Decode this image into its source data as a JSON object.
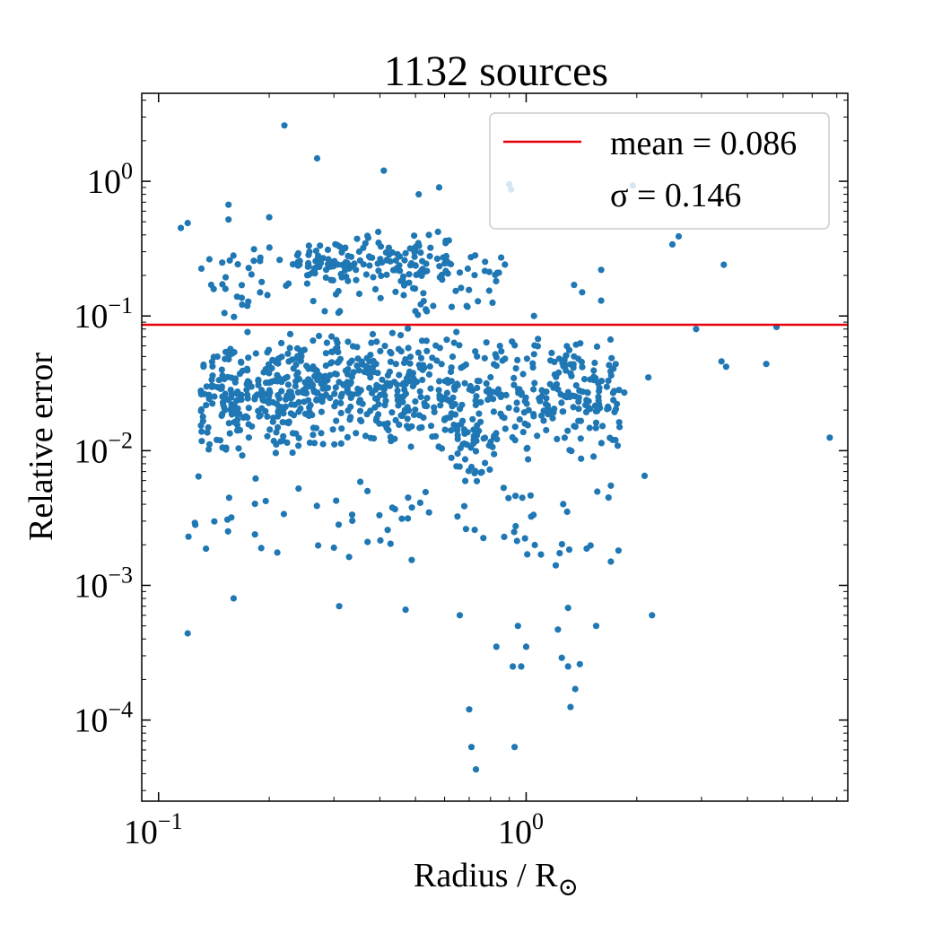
{
  "chart_data": {
    "type": "scatter",
    "title": "1132 sources",
    "xlabel": "Radius / R",
    "xlabel_subscript": "⊙",
    "ylabel": "Relative error",
    "x_scale": "log",
    "y_scale": "log",
    "xlim": [
      0.09,
      7.5
    ],
    "ylim": [
      2.5e-05,
      4.5
    ],
    "x_ticks": [
      {
        "value": 0.1,
        "base": "10",
        "exp": "−1"
      },
      {
        "value": 1,
        "base": "10",
        "exp": "0"
      }
    ],
    "y_ticks": [
      {
        "value": 1,
        "base": "10",
        "exp": "0"
      },
      {
        "value": 0.1,
        "base": "10",
        "exp": "−1"
      },
      {
        "value": 0.01,
        "base": "10",
        "exp": "−2"
      },
      {
        "value": 0.001,
        "base": "10",
        "exp": "−3"
      },
      {
        "value": 0.0001,
        "base": "10",
        "exp": "−4"
      }
    ],
    "point_color": "#1f77b4",
    "mean_line": {
      "value": 0.086,
      "color": "#e8000b"
    },
    "legend": {
      "placement": "top-right",
      "mean_label": "mean = 0.086",
      "sigma_label": "σ = 0.146"
    },
    "grid": false,
    "outlier_points": [
      [
        0.22,
        2.6
      ],
      [
        0.27,
        1.48
      ],
      [
        0.41,
        1.2
      ],
      [
        0.115,
        0.45
      ],
      [
        0.12,
        0.49
      ],
      [
        0.155,
        0.67
      ],
      [
        0.155,
        0.52
      ],
      [
        0.2,
        0.54
      ],
      [
        0.51,
        0.8
      ],
      [
        0.58,
        0.9
      ],
      [
        0.9,
        0.95
      ],
      [
        0.91,
        0.87
      ],
      [
        1.95,
        0.93
      ],
      [
        2.5,
        0.34
      ],
      [
        2.6,
        0.39
      ],
      [
        3.45,
        0.24
      ],
      [
        3.4,
        0.046
      ],
      [
        3.5,
        0.042
      ],
      [
        4.5,
        0.044
      ],
      [
        4.8,
        0.083
      ],
      [
        2.9,
        0.08
      ],
      [
        6.7,
        0.0125
      ],
      [
        0.12,
        0.00044
      ],
      [
        0.16,
        0.0008
      ],
      [
        0.31,
        0.0007
      ],
      [
        0.47,
        0.00066
      ],
      [
        0.66,
        0.0006
      ],
      [
        0.7,
        0.00012
      ],
      [
        0.71,
        6.3e-05
      ],
      [
        0.73,
        4.3e-05
      ],
      [
        0.93,
        6.3e-05
      ],
      [
        0.83,
        0.00035
      ],
      [
        0.92,
        0.00025
      ],
      [
        0.97,
        0.00025
      ],
      [
        0.95,
        0.0005
      ],
      [
        1.0,
        0.00035
      ],
      [
        1.25,
        0.00029
      ],
      [
        1.3,
        0.00025
      ],
      [
        1.32,
        0.000125
      ],
      [
        1.36,
        0.00017
      ],
      [
        1.4,
        0.00026
      ],
      [
        1.22,
        0.00047
      ],
      [
        1.3,
        0.00068
      ],
      [
        1.55,
        0.0005
      ],
      [
        2.2,
        0.0006
      ],
      [
        2.1,
        0.0065
      ],
      [
        2.15,
        0.035
      ],
      [
        1.7,
        0.0015
      ],
      [
        1.7,
        0.0055
      ],
      [
        1.75,
        0.012
      ],
      [
        1.85,
        0.027
      ],
      [
        1.6,
        0.22
      ],
      [
        1.6,
        0.13
      ],
      [
        1.35,
        0.17
      ],
      [
        1.42,
        0.15
      ],
      [
        1.05,
        0.1
      ],
      [
        0.66,
        0.21
      ]
    ],
    "cloud_regions": [
      {
        "x_range": [
          0.13,
          0.24
        ],
        "y_range": [
          0.008,
          0.08
        ],
        "count": 240
      },
      {
        "x_range": [
          0.24,
          0.55
        ],
        "y_range": [
          0.01,
          0.09
        ],
        "count": 290
      },
      {
        "x_range": [
          0.55,
          1.8
        ],
        "y_range": [
          0.008,
          0.08
        ],
        "count": 290
      },
      {
        "x_range": [
          0.23,
          0.34
        ],
        "y_range": [
          0.18,
          0.35
        ],
        "count": 55
      },
      {
        "x_range": [
          0.34,
          0.62
        ],
        "y_range": [
          0.15,
          0.45
        ],
        "count": 80
      },
      {
        "x_range": [
          0.12,
          1.8
        ],
        "y_range": [
          0.0012,
          0.008
        ],
        "count": 75
      },
      {
        "x_range": [
          0.62,
          0.82
        ],
        "y_range": [
          0.005,
          0.025
        ],
        "count": 40
      },
      {
        "x_range": [
          0.13,
          0.9
        ],
        "y_range": [
          0.09,
          0.35
        ],
        "count": 100
      }
    ]
  }
}
